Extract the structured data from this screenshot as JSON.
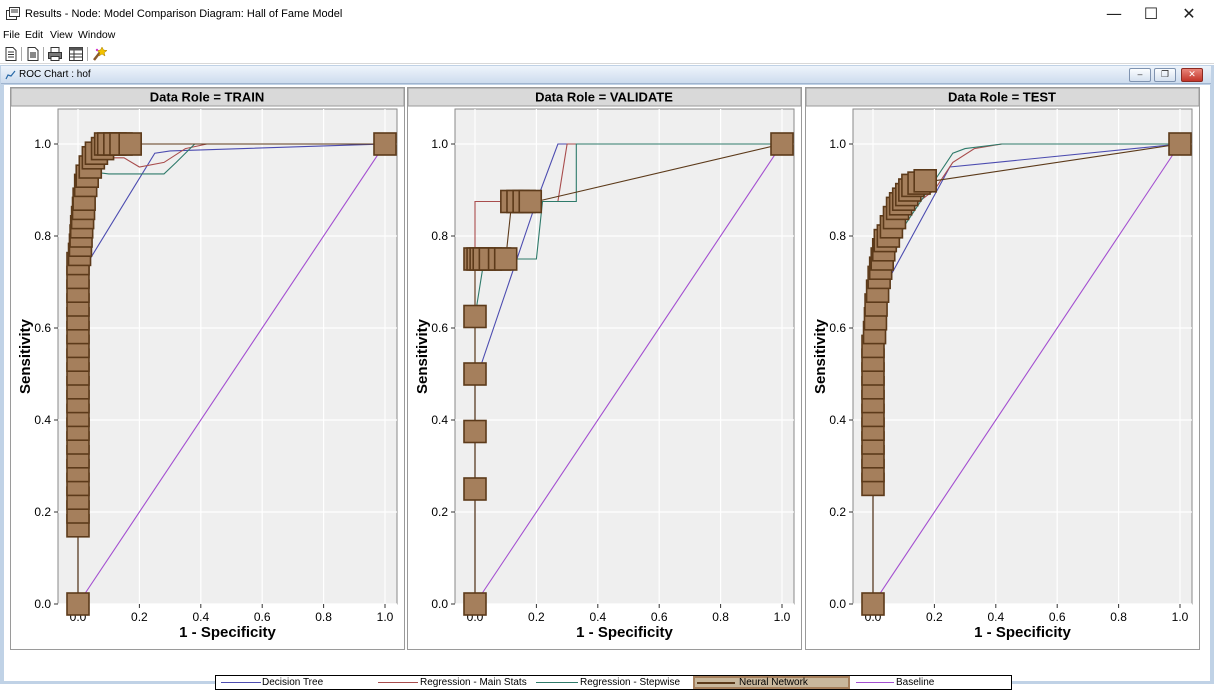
{
  "window": {
    "title": "Results - Node: Model Comparison  Diagram: Hall of Fame Model",
    "minimize": "—",
    "maximize": "☐",
    "close": "✕"
  },
  "menu": [
    "File",
    "Edit",
    "View",
    "Window"
  ],
  "toolbar": {
    "icons": [
      "document-icon",
      "properties-icon",
      "print-icon",
      "table-icon",
      "wizard-icon"
    ]
  },
  "child_window": {
    "title": "ROC Chart : hof",
    "minimize": "‒",
    "restore": "❐",
    "close": "✕"
  },
  "legend": [
    "Decision Tree",
    "Regression - Main Stats",
    "Regression - Stepwise",
    "Neural Network",
    "Baseline"
  ],
  "colors": {
    "decision_tree": "#4c4cb0",
    "reg_main": "#a84c4c",
    "reg_step": "#2e7a6a",
    "neural": "#5c3a1a",
    "neural_fill": "#a57f5c",
    "baseline": "#a34fd0",
    "header_bg": "#d9d9d9",
    "plot_bg": "#efefef"
  },
  "chart_data": [
    {
      "type": "line",
      "title": "Data Role = TRAIN",
      "xlabel": "1 - Specificity",
      "ylabel": "Sensitivity",
      "xlim": [
        0,
        1
      ],
      "ylim": [
        0,
        1
      ],
      "xticks": [
        "0.0",
        "0.2",
        "0.4",
        "0.6",
        "0.8",
        "1.0"
      ],
      "yticks": [
        "0.0",
        "0.2",
        "0.4",
        "0.6",
        "0.8",
        "1.0"
      ],
      "grid": true,
      "series": [
        {
          "name": "Decision Tree",
          "points": [
            [
              0,
              0
            ],
            [
              0,
              0.73
            ],
            [
              0.03,
              0.74
            ],
            [
              0.25,
              0.98
            ],
            [
              0.3,
              0.985
            ],
            [
              1,
              1
            ]
          ]
        },
        {
          "name": "Regression - Main Stats",
          "points": [
            [
              0,
              0
            ],
            [
              0,
              0.9
            ],
            [
              0.03,
              0.95
            ],
            [
              0.05,
              0.97
            ],
            [
              0.15,
              0.97
            ],
            [
              0.2,
              0.95
            ],
            [
              0.28,
              0.96
            ],
            [
              0.35,
              0.99
            ],
            [
              0.42,
              1
            ],
            [
              1,
              1
            ]
          ]
        },
        {
          "name": "Regression - Stepwise",
          "points": [
            [
              0,
              0
            ],
            [
              0,
              0.9
            ],
            [
              0.04,
              0.94
            ],
            [
              0.1,
              0.935
            ],
            [
              0.2,
              0.935
            ],
            [
              0.28,
              0.935
            ],
            [
              0.32,
              0.96
            ],
            [
              0.38,
              1
            ],
            [
              1,
              1
            ]
          ]
        },
        {
          "name": "Neural Network",
          "points": [
            [
              0,
              0
            ],
            [
              0,
              0.15
            ],
            [
              0,
              0.72
            ],
            [
              0.01,
              0.82
            ],
            [
              0.02,
              0.9
            ],
            [
              0.03,
              0.95
            ],
            [
              0.05,
              0.98
            ],
            [
              0.1,
              1
            ],
            [
              0.15,
              1
            ],
            [
              1,
              1
            ]
          ],
          "markers": [
            [
              0,
              0
            ],
            [
              0,
              0.17
            ],
            [
              0,
              0.2
            ],
            [
              0,
              0.23
            ],
            [
              0,
              0.26
            ],
            [
              0,
              0.29
            ],
            [
              0,
              0.32
            ],
            [
              0,
              0.35
            ],
            [
              0,
              0.38
            ],
            [
              0,
              0.41
            ],
            [
              0,
              0.44
            ],
            [
              0,
              0.47
            ],
            [
              0,
              0.5
            ],
            [
              0,
              0.53
            ],
            [
              0,
              0.56
            ],
            [
              0,
              0.59
            ],
            [
              0,
              0.62
            ],
            [
              0,
              0.65
            ],
            [
              0,
              0.68
            ],
            [
              0,
              0.71
            ],
            [
              0,
              0.74
            ],
            [
              0.005,
              0.76
            ],
            [
              0.008,
              0.78
            ],
            [
              0.01,
              0.8
            ],
            [
              0.012,
              0.82
            ],
            [
              0.015,
              0.84
            ],
            [
              0.018,
              0.86
            ],
            [
              0.02,
              0.88
            ],
            [
              0.025,
              0.91
            ],
            [
              0.03,
              0.93
            ],
            [
              0.04,
              0.95
            ],
            [
              0.05,
              0.97
            ],
            [
              0.06,
              0.98
            ],
            [
              0.08,
              0.99
            ],
            [
              0.09,
              1
            ],
            [
              0.1,
              1
            ],
            [
              0.12,
              1
            ],
            [
              0.14,
              1
            ],
            [
              0.17,
              1
            ],
            [
              1,
              1
            ]
          ]
        },
        {
          "name": "Baseline",
          "points": [
            [
              0,
              0
            ],
            [
              1,
              1
            ]
          ]
        }
      ]
    },
    {
      "type": "line",
      "title": "Data Role = VALIDATE",
      "xlabel": "1 - Specificity",
      "ylabel": "Sensitivity",
      "xlim": [
        0,
        1
      ],
      "ylim": [
        0,
        1
      ],
      "xticks": [
        "0.0",
        "0.2",
        "0.4",
        "0.6",
        "0.8",
        "1.0"
      ],
      "yticks": [
        "0.0",
        "0.2",
        "0.4",
        "0.6",
        "0.8",
        "1.0"
      ],
      "grid": true,
      "series": [
        {
          "name": "Decision Tree",
          "points": [
            [
              0,
              0
            ],
            [
              0,
              0.5
            ],
            [
              0.02,
              0.52
            ],
            [
              0.2,
              0.875
            ],
            [
              0.27,
              1
            ],
            [
              1,
              1
            ]
          ]
        },
        {
          "name": "Regression - Main Stats",
          "points": [
            [
              0,
              0
            ],
            [
              0,
              0.875
            ],
            [
              0.06,
              0.875
            ],
            [
              0.2,
              0.875
            ],
            [
              0.27,
              0.875
            ],
            [
              0.3,
              1
            ],
            [
              1,
              1
            ]
          ]
        },
        {
          "name": "Regression - Stepwise",
          "points": [
            [
              0,
              0
            ],
            [
              0,
              0.625
            ],
            [
              0.03,
              0.75
            ],
            [
              0.2,
              0.75
            ],
            [
              0.22,
              0.875
            ],
            [
              0.33,
              0.875
            ],
            [
              0.33,
              1
            ],
            [
              1,
              1
            ]
          ]
        },
        {
          "name": "Neural Network",
          "points": [
            [
              0,
              0
            ],
            [
              0,
              0.625
            ],
            [
              0,
              0.75
            ],
            [
              0.1,
              0.75
            ],
            [
              0.12,
              0.875
            ],
            [
              0.2,
              0.875
            ],
            [
              1,
              1
            ]
          ],
          "markers": [
            [
              0,
              0
            ],
            [
              0,
              0.25
            ],
            [
              0,
              0.375
            ],
            [
              0,
              0.5
            ],
            [
              0,
              0.625
            ],
            [
              0,
              0.75
            ],
            [
              0.01,
              0.75
            ],
            [
              0.02,
              0.75
            ],
            [
              0.03,
              0.75
            ],
            [
              0.05,
              0.75
            ],
            [
              0.08,
              0.75
            ],
            [
              0.1,
              0.75
            ],
            [
              0.12,
              0.875
            ],
            [
              0.14,
              0.875
            ],
            [
              0.16,
              0.875
            ],
            [
              0.18,
              0.875
            ],
            [
              1,
              1
            ]
          ]
        },
        {
          "name": "Baseline",
          "points": [
            [
              0,
              0
            ],
            [
              1,
              1
            ]
          ]
        }
      ]
    },
    {
      "type": "line",
      "title": "Data Role = TEST",
      "xlabel": "1 - Specificity",
      "ylabel": "Sensitivity",
      "xlim": [
        0,
        1
      ],
      "ylim": [
        0,
        1
      ],
      "xticks": [
        "0.0",
        "0.2",
        "0.4",
        "0.6",
        "0.8",
        "1.0"
      ],
      "yticks": [
        "0.0",
        "0.2",
        "0.4",
        "0.6",
        "0.8",
        "1.0"
      ],
      "grid": true,
      "series": [
        {
          "name": "Decision Tree",
          "points": [
            [
              0,
              0
            ],
            [
              0,
              0.66
            ],
            [
              0.03,
              0.68
            ],
            [
              0.25,
              0.95
            ],
            [
              0.4,
              0.96
            ],
            [
              1,
              1
            ]
          ]
        },
        {
          "name": "Regression - Main Stats",
          "points": [
            [
              0,
              0
            ],
            [
              0,
              0.3
            ],
            [
              0.02,
              0.6
            ],
            [
              0.05,
              0.75
            ],
            [
              0.1,
              0.85
            ],
            [
              0.2,
              0.9
            ],
            [
              0.26,
              0.96
            ],
            [
              0.33,
              0.99
            ],
            [
              0.42,
              1
            ],
            [
              1,
              1
            ]
          ]
        },
        {
          "name": "Regression - Stepwise",
          "points": [
            [
              0,
              0
            ],
            [
              0,
              0.23
            ],
            [
              0.02,
              0.5
            ],
            [
              0.05,
              0.72
            ],
            [
              0.1,
              0.82
            ],
            [
              0.18,
              0.9
            ],
            [
              0.26,
              0.98
            ],
            [
              0.3,
              0.99
            ],
            [
              0.42,
              1
            ],
            [
              1,
              1
            ]
          ]
        },
        {
          "name": "Neural Network",
          "points": [
            [
              0,
              0
            ],
            [
              0,
              0.23
            ],
            [
              0,
              0.6
            ],
            [
              0.02,
              0.75
            ],
            [
              0.04,
              0.8
            ],
            [
              0.08,
              0.86
            ],
            [
              0.12,
              0.9
            ],
            [
              0.2,
              0.92
            ],
            [
              1,
              1
            ]
          ],
          "markers": [
            [
              0,
              0
            ],
            [
              0,
              0.26
            ],
            [
              0,
              0.29
            ],
            [
              0,
              0.32
            ],
            [
              0,
              0.35
            ],
            [
              0,
              0.38
            ],
            [
              0,
              0.41
            ],
            [
              0,
              0.44
            ],
            [
              0,
              0.47
            ],
            [
              0,
              0.5
            ],
            [
              0,
              0.53
            ],
            [
              0,
              0.56
            ],
            [
              0.005,
              0.59
            ],
            [
              0.008,
              0.62
            ],
            [
              0.01,
              0.65
            ],
            [
              0.015,
              0.68
            ],
            [
              0.02,
              0.71
            ],
            [
              0.025,
              0.73
            ],
            [
              0.03,
              0.75
            ],
            [
              0.035,
              0.77
            ],
            [
              0.04,
              0.79
            ],
            [
              0.05,
              0.8
            ],
            [
              0.06,
              0.82
            ],
            [
              0.07,
              0.84
            ],
            [
              0.08,
              0.86
            ],
            [
              0.09,
              0.87
            ],
            [
              0.1,
              0.88
            ],
            [
              0.11,
              0.89
            ],
            [
              0.12,
              0.9
            ],
            [
              0.13,
              0.91
            ],
            [
              0.15,
              0.915
            ],
            [
              0.17,
              0.92
            ],
            [
              1,
              1
            ]
          ]
        },
        {
          "name": "Baseline",
          "points": [
            [
              0,
              0
            ],
            [
              1,
              1
            ]
          ]
        }
      ]
    }
  ]
}
